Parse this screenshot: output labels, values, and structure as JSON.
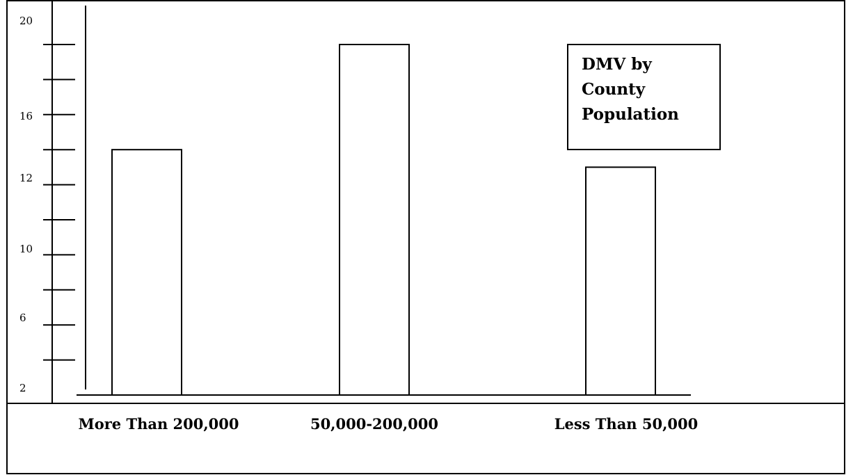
{
  "chart_data": {
    "type": "bar",
    "title": "DMV by County Population",
    "title_lines": [
      "DMV by",
      "County",
      "Population"
    ],
    "categories": [
      "More Than 200,000",
      "50,000-200,000",
      "Less Than 50,000"
    ],
    "values": [
      14,
      20,
      13
    ],
    "ytick_labels": [
      "20",
      "16",
      "12",
      "10",
      "6",
      "2"
    ],
    "xlabel": "",
    "ylabel": "",
    "ylim": [
      0,
      22
    ],
    "grid": false,
    "legend_position": "top-right",
    "bar_fill": "#ffffff",
    "bar_stroke": "#000000"
  }
}
